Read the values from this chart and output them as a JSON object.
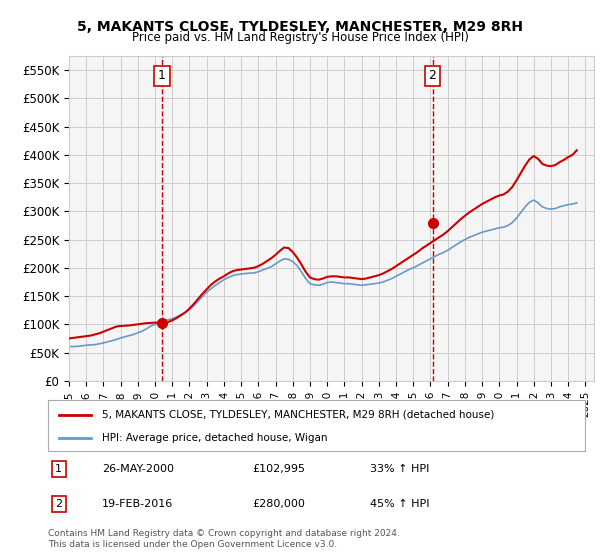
{
  "title": "5, MAKANTS CLOSE, TYLDESLEY, MANCHESTER, M29 8RH",
  "subtitle": "Price paid vs. HM Land Registry's House Price Index (HPI)",
  "ylabel_ticks": [
    "£0",
    "£50K",
    "£100K",
    "£150K",
    "£200K",
    "£250K",
    "£300K",
    "£350K",
    "£400K",
    "£450K",
    "£500K",
    "£550K"
  ],
  "ytick_values": [
    0,
    50000,
    100000,
    150000,
    200000,
    250000,
    300000,
    350000,
    400000,
    450000,
    500000,
    550000
  ],
  "ylim": [
    0,
    575000
  ],
  "xlim_start": 1995.0,
  "xlim_end": 2025.5,
  "sale1": {
    "date_x": 2000.4,
    "price": 102995,
    "label": "1"
  },
  "sale2": {
    "date_x": 2016.12,
    "price": 280000,
    "label": "2"
  },
  "legend_line1": "5, MAKANTS CLOSE, TYLDESLEY, MANCHESTER, M29 8RH (detached house)",
  "legend_line2": "HPI: Average price, detached house, Wigan",
  "table_entries": [
    {
      "num": "1",
      "date": "26-MAY-2000",
      "price": "£102,995",
      "pct": "33% ↑ HPI"
    },
    {
      "num": "2",
      "date": "19-FEB-2016",
      "price": "£280,000",
      "pct": "45% ↑ HPI"
    }
  ],
  "footer": "Contains HM Land Registry data © Crown copyright and database right 2024.\nThis data is licensed under the Open Government Licence v3.0.",
  "line_color_red": "#cc0000",
  "line_color_blue": "#6699cc",
  "marker_color": "#cc0000",
  "vline_color": "#cc0000",
  "grid_color": "#cccccc",
  "bg_color": "#ffffff",
  "plot_bg_color": "#f5f5f5",
  "hpi_data_x": [
    1995.0,
    1995.25,
    1995.5,
    1995.75,
    1996.0,
    1996.25,
    1996.5,
    1996.75,
    1997.0,
    1997.25,
    1997.5,
    1997.75,
    1998.0,
    1998.25,
    1998.5,
    1998.75,
    1999.0,
    1999.25,
    1999.5,
    1999.75,
    2000.0,
    2000.25,
    2000.5,
    2000.75,
    2001.0,
    2001.25,
    2001.5,
    2001.75,
    2002.0,
    2002.25,
    2002.5,
    2002.75,
    2003.0,
    2003.25,
    2003.5,
    2003.75,
    2004.0,
    2004.25,
    2004.5,
    2004.75,
    2005.0,
    2005.25,
    2005.5,
    2005.75,
    2006.0,
    2006.25,
    2006.5,
    2006.75,
    2007.0,
    2007.25,
    2007.5,
    2007.75,
    2008.0,
    2008.25,
    2008.5,
    2008.75,
    2009.0,
    2009.25,
    2009.5,
    2009.75,
    2010.0,
    2010.25,
    2010.5,
    2010.75,
    2011.0,
    2011.25,
    2011.5,
    2011.75,
    2012.0,
    2012.25,
    2012.5,
    2012.75,
    2013.0,
    2013.25,
    2013.5,
    2013.75,
    2014.0,
    2014.25,
    2014.5,
    2014.75,
    2015.0,
    2015.25,
    2015.5,
    2015.75,
    2016.0,
    2016.25,
    2016.5,
    2016.75,
    2017.0,
    2017.25,
    2017.5,
    2017.75,
    2018.0,
    2018.25,
    2018.5,
    2018.75,
    2019.0,
    2019.25,
    2019.5,
    2019.75,
    2020.0,
    2020.25,
    2020.5,
    2020.75,
    2021.0,
    2021.25,
    2021.5,
    2021.75,
    2022.0,
    2022.25,
    2022.5,
    2022.75,
    2023.0,
    2023.25,
    2023.5,
    2023.75,
    2024.0,
    2024.25,
    2024.5
  ],
  "hpi_data_y": [
    61000,
    60500,
    61000,
    62000,
    63000,
    63500,
    64000,
    65500,
    67000,
    69000,
    71000,
    73000,
    76000,
    78000,
    80000,
    82000,
    85000,
    88000,
    92000,
    97000,
    100000,
    103000,
    106000,
    108000,
    110000,
    113000,
    117000,
    121000,
    126000,
    133000,
    141000,
    149000,
    157000,
    163000,
    169000,
    174000,
    179000,
    183000,
    186000,
    188000,
    189000,
    190000,
    190500,
    191000,
    193000,
    196000,
    199000,
    202000,
    207000,
    212000,
    216000,
    215000,
    211000,
    204000,
    193000,
    181000,
    172000,
    170000,
    169000,
    171000,
    174000,
    175000,
    174000,
    173000,
    172000,
    172000,
    171000,
    170000,
    169000,
    170000,
    171000,
    172000,
    173000,
    175000,
    178000,
    181000,
    185000,
    189000,
    193000,
    197000,
    200000,
    204000,
    208000,
    212000,
    216000,
    220000,
    224000,
    227000,
    231000,
    236000,
    241000,
    246000,
    250000,
    254000,
    257000,
    260000,
    263000,
    265000,
    267000,
    269000,
    271000,
    272000,
    275000,
    280000,
    288000,
    298000,
    308000,
    316000,
    320000,
    315000,
    308000,
    305000,
    304000,
    305000,
    308000,
    310000,
    312000,
    313000,
    315000
  ],
  "price_data_x": [
    1995.0,
    1995.25,
    1995.5,
    1995.75,
    1996.0,
    1996.25,
    1996.5,
    1996.75,
    1997.0,
    1997.25,
    1997.5,
    1997.75,
    1998.0,
    1998.25,
    1998.5,
    1998.75,
    1999.0,
    1999.25,
    1999.5,
    1999.75,
    2000.0,
    2000.25,
    2000.5,
    2000.75,
    2001.0,
    2001.25,
    2001.5,
    2001.75,
    2002.0,
    2002.25,
    2002.5,
    2002.75,
    2003.0,
    2003.25,
    2003.5,
    2003.75,
    2004.0,
    2004.25,
    2004.5,
    2004.75,
    2005.0,
    2005.25,
    2005.5,
    2005.75,
    2006.0,
    2006.25,
    2006.5,
    2006.75,
    2007.0,
    2007.25,
    2007.5,
    2007.75,
    2008.0,
    2008.25,
    2008.5,
    2008.75,
    2009.0,
    2009.25,
    2009.5,
    2009.75,
    2010.0,
    2010.25,
    2010.5,
    2010.75,
    2011.0,
    2011.25,
    2011.5,
    2011.75,
    2012.0,
    2012.25,
    2012.5,
    2012.75,
    2013.0,
    2013.25,
    2013.5,
    2013.75,
    2014.0,
    2014.25,
    2014.5,
    2014.75,
    2015.0,
    2015.25,
    2015.5,
    2015.75,
    2016.0,
    2016.25,
    2016.5,
    2016.75,
    2017.0,
    2017.25,
    2017.5,
    2017.75,
    2018.0,
    2018.25,
    2018.5,
    2018.75,
    2019.0,
    2019.25,
    2019.5,
    2019.75,
    2020.0,
    2020.25,
    2020.5,
    2020.75,
    2021.0,
    2021.25,
    2021.5,
    2021.75,
    2022.0,
    2022.25,
    2022.5,
    2022.75,
    2023.0,
    2023.25,
    2023.5,
    2023.75,
    2024.0,
    2024.25,
    2024.5
  ],
  "price_data_y": [
    75000,
    76000,
    77000,
    78000,
    79000,
    80000,
    82000,
    84000,
    87000,
    90000,
    93000,
    96000,
    97000,
    97500,
    98000,
    99000,
    100000,
    101000,
    102000,
    102500,
    103000,
    102995,
    102995,
    104000,
    107000,
    111000,
    116000,
    121000,
    128000,
    136000,
    145000,
    154000,
    162000,
    170000,
    176000,
    181000,
    185000,
    190000,
    194000,
    196000,
    197000,
    198000,
    199000,
    200000,
    203000,
    207000,
    212000,
    217000,
    223000,
    230000,
    236000,
    235000,
    228000,
    218000,
    206000,
    193000,
    183000,
    180000,
    179000,
    181000,
    184000,
    185000,
    185000,
    184000,
    183000,
    183000,
    182000,
    181000,
    180000,
    181000,
    183000,
    185000,
    187000,
    190000,
    194000,
    198000,
    203000,
    208000,
    213000,
    218000,
    223000,
    228000,
    234000,
    239000,
    244000,
    249000,
    254000,
    259000,
    265000,
    272000,
    279000,
    286000,
    292000,
    298000,
    303000,
    308000,
    313000,
    317000,
    321000,
    325000,
    328000,
    330000,
    335000,
    343000,
    355000,
    368000,
    381000,
    392000,
    398000,
    393000,
    384000,
    381000,
    380000,
    382000,
    387000,
    391000,
    396000,
    400000,
    408000
  ]
}
